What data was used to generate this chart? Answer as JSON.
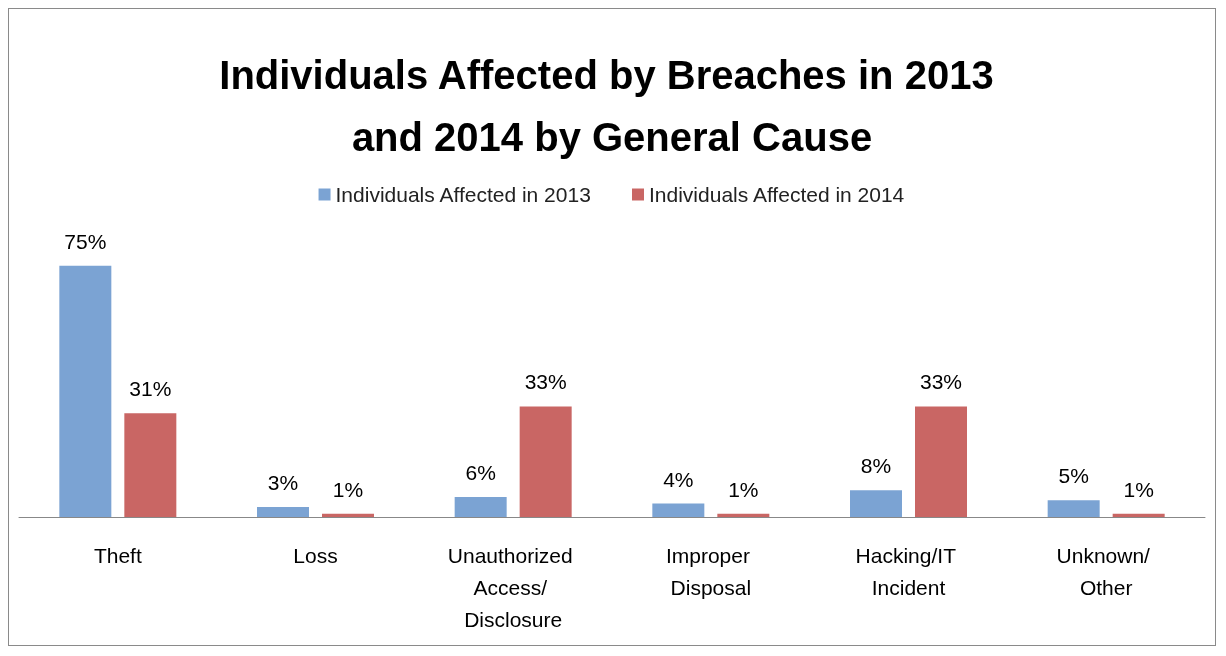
{
  "chart_data": {
    "type": "bar",
    "title": "Individuals Affected by Breaches in 2013 and 2014 by General Cause",
    "categories": [
      "Theft",
      "Loss",
      "Unauthorized Access/ Disclosure",
      "Improper Disposal",
      "Hacking/IT Incident",
      "Unknown/ Other"
    ],
    "series": [
      {
        "name": "Individuals Affected in 2013",
        "color": "#7ba3d3",
        "values": [
          75,
          3,
          6,
          4,
          8,
          5
        ],
        "value_labels": [
          "75%",
          "3%",
          "6%",
          "4%",
          "8%",
          "5%"
        ]
      },
      {
        "name": "Individuals Affected in 2014",
        "color": "#c96664",
        "values": [
          31,
          1,
          33,
          1,
          33,
          1
        ],
        "value_labels": [
          "31%",
          "1%",
          "33%",
          "1%",
          "33%",
          "1%"
        ]
      }
    ],
    "legend": "top",
    "grid": false
  }
}
